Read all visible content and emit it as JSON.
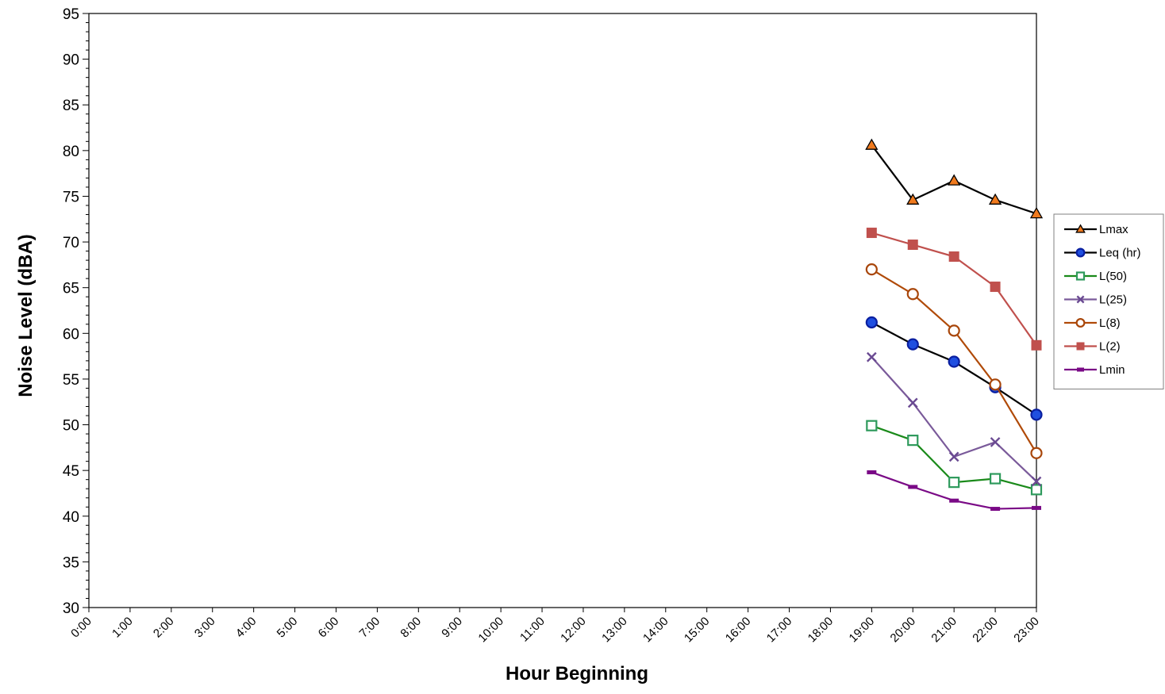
{
  "chart_data": {
    "type": "line",
    "xlabel": "Hour Beginning",
    "ylabel": "Noise Level (dBA)",
    "ylim": [
      30,
      95
    ],
    "y_major_step": 5,
    "y_minor_step": 1,
    "grid": true,
    "legend_position": "right",
    "categories": [
      "0:00",
      "1:00",
      "2:00",
      "3:00",
      "4:00",
      "5:00",
      "6:00",
      "7:00",
      "8:00",
      "9:00",
      "10:00",
      "11:00",
      "12:00",
      "13:00",
      "14:00",
      "15:00",
      "16:00",
      "17:00",
      "18:00",
      "19:00",
      "20:00",
      "21:00",
      "22:00",
      "23:00"
    ],
    "vertical_gridline_hours": [
      "6:00",
      "12:00",
      "18:00"
    ],
    "series": [
      {
        "name": "Lmax",
        "x": [
          "19:00",
          "20:00",
          "21:00",
          "22:00",
          "23:00"
        ],
        "values": [
          80.6,
          74.6,
          76.7,
          74.6,
          73.1
        ],
        "line_color": "#000000",
        "marker": "triangle",
        "marker_fill": "#f07a1e",
        "marker_stroke": "#000000"
      },
      {
        "name": "Leq (hr)",
        "x": [
          "19:00",
          "20:00",
          "21:00",
          "22:00",
          "23:00"
        ],
        "values": [
          61.2,
          58.8,
          56.9,
          54.1,
          51.1
        ],
        "line_color": "#000000",
        "marker": "circle",
        "marker_fill": "#1f4fe0",
        "marker_stroke": "#0a1fa0"
      },
      {
        "name": "L(50)",
        "x": [
          "19:00",
          "20:00",
          "21:00",
          "22:00",
          "23:00"
        ],
        "values": [
          49.9,
          48.3,
          43.7,
          44.1,
          42.9
        ],
        "line_color": "#1a8a1a",
        "marker": "square-open",
        "marker_fill": "#ffffff",
        "marker_stroke": "#2e9a5c"
      },
      {
        "name": "L(25)",
        "x": [
          "19:00",
          "20:00",
          "21:00",
          "22:00",
          "23:00"
        ],
        "values": [
          57.4,
          52.4,
          46.5,
          48.1,
          43.8
        ],
        "line_color": "#7a5a9a",
        "marker": "x",
        "marker_fill": "none",
        "marker_stroke": "#6a4a92"
      },
      {
        "name": "L(8)",
        "x": [
          "19:00",
          "20:00",
          "21:00",
          "22:00",
          "23:00"
        ],
        "values": [
          67.0,
          64.3,
          60.3,
          54.4,
          46.9
        ],
        "line_color": "#b04a08",
        "marker": "circle-open",
        "marker_fill": "#ffffff",
        "marker_stroke": "#a8460a"
      },
      {
        "name": "L(2)",
        "x": [
          "19:00",
          "20:00",
          "21:00",
          "22:00",
          "23:00"
        ],
        "values": [
          71.0,
          69.7,
          68.4,
          65.1,
          58.7
        ],
        "line_color": "#c0504d",
        "marker": "square",
        "marker_fill": "#c0504d",
        "marker_stroke": "#c0504d"
      },
      {
        "name": "Lmin",
        "x": [
          "19:00",
          "20:00",
          "21:00",
          "22:00",
          "23:00"
        ],
        "values": [
          44.8,
          43.2,
          41.7,
          40.8,
          40.9
        ],
        "line_color": "#7a0a86",
        "marker": "dash",
        "marker_fill": "#7a0a86",
        "marker_stroke": "#7a0a86"
      }
    ]
  }
}
